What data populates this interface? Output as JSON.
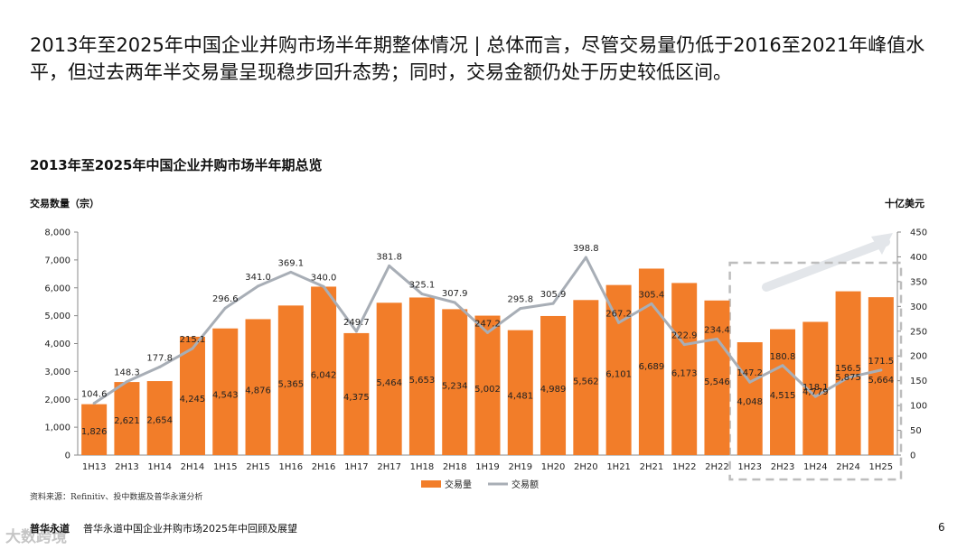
{
  "headline": "2013年至2025年中国企业并购市场半年期整体情况 | 总体而言，尽管交易量仍低于2016至2021年峰值水平，但过去两年半交易量呈现稳步回升态势；同时，交易金额仍处于历史较低区间。",
  "chart_title": "2013年至2025年中国企业并购市场半年期总览",
  "source": "资料来源：Refinitiv、投中数据及普华永道分析",
  "footer": {
    "brand": "普华永道",
    "text": "普华永道中国企业并购市场2025年中回顾及展望",
    "page": "6"
  },
  "watermark": "大数跨境",
  "colors": {
    "bar": "#F27D29",
    "line": "#A8AEB6",
    "highlight_box": "#BDBDBD",
    "arrow": "#E3E6EA"
  },
  "chart_data": {
    "type": "bar+line",
    "title": "2013年至2025年中国企业并购市场半年期总览",
    "categories": [
      "1H13",
      "2H13",
      "1H14",
      "2H14",
      "1H15",
      "2H15",
      "1H16",
      "2H16",
      "1H17",
      "2H17",
      "1H18",
      "2H18",
      "1H19",
      "2H19",
      "1H20",
      "2H20",
      "1H21",
      "2H21",
      "1H22",
      "2H22",
      "1H23",
      "2H23",
      "1H24",
      "2H24",
      "1H25"
    ],
    "series": [
      {
        "name": "交易量",
        "type": "bar",
        "axis": "left",
        "values": [
          1826,
          2621,
          2654,
          4245,
          4543,
          4876,
          5365,
          6042,
          4375,
          5464,
          5653,
          5234,
          5002,
          4481,
          4989,
          5562,
          6101,
          6689,
          6173,
          5546,
          4048,
          4515,
          4779,
          5875,
          5664
        ]
      },
      {
        "name": "交易额",
        "type": "line",
        "axis": "right",
        "values": [
          104.6,
          148.3,
          177.8,
          215.1,
          296.6,
          341.0,
          369.1,
          340.0,
          249.7,
          381.8,
          325.1,
          307.9,
          247.2,
          295.8,
          305.9,
          398.8,
          267.2,
          305.4,
          222.9,
          234.4,
          147.2,
          180.8,
          118.1,
          156.5,
          171.5
        ]
      }
    ],
    "bar_labels": [
      "1,826",
      "2,621",
      "2,654",
      "4,245",
      "4,543",
      "4,876",
      "5,365",
      "6,042",
      "4,375",
      "5,464",
      "5,653",
      "5,234",
      "5,002",
      "4,481",
      "4,989",
      "5,562",
      "6,101",
      "6,689",
      "6,173",
      "5,546",
      "4,048",
      "4,515",
      "4,779",
      "5,875",
      "5,664"
    ],
    "line_labels": [
      "104.6",
      "148.3",
      "177.8",
      "215.1",
      "296.6",
      "341.0",
      "369.1",
      "340.0",
      "249.7",
      "381.8",
      "325.1",
      "307.9",
      "247.2",
      "295.8",
      "305.9",
      "398.8",
      "267.2",
      "305.4",
      "222.9",
      "234.4",
      "147.2",
      "180.8",
      "118.1",
      "156.5",
      "171.5"
    ],
    "ylabel_left": "交易数量（宗）",
    "ylabel_right": "十亿美元",
    "ylim_left": [
      0,
      8000
    ],
    "ylim_right": [
      0,
      450
    ],
    "yticks_left": [
      "0",
      "1,000",
      "2,000",
      "3,000",
      "4,000",
      "5,000",
      "6,000",
      "7,000",
      "8,000"
    ],
    "yticks_right": [
      "0",
      "50",
      "100",
      "150",
      "200",
      "250",
      "300",
      "350",
      "400",
      "450"
    ],
    "legend": [
      "交易量",
      "交易额"
    ],
    "highlight_range": [
      "1H23",
      "1H25"
    ],
    "legend_position": "bottom-center"
  }
}
